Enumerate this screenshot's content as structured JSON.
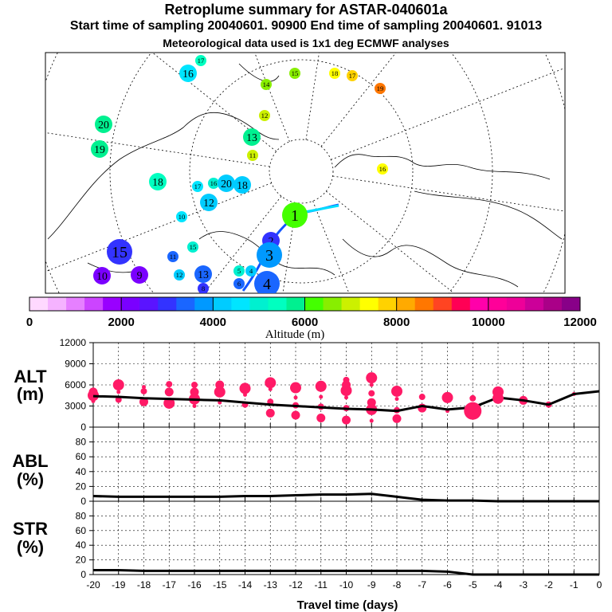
{
  "header": {
    "title": "Retroplume summary for ASTAR-040601a",
    "sampling": "Start time of sampling 20040601. 90900     End time of sampling 20040601. 91013",
    "meteo": "Meteorological data used is 1x1 deg ECMWF analyses"
  },
  "colors": {
    "pink": "#ff1a66",
    "track": "#000000",
    "scale": [
      "#ffd9ff",
      "#f5b3ff",
      "#e680ff",
      "#cc44ff",
      "#9900ff",
      "#7a00ff",
      "#5a14ff",
      "#3333ff",
      "#1a66ff",
      "#0099ff",
      "#00ccff",
      "#00e5ff",
      "#00f0d0",
      "#00ffc0",
      "#00f090",
      "#44ff00",
      "#88ee00",
      "#ccf000",
      "#ffff00",
      "#ffd200",
      "#ffaa00",
      "#ff7700",
      "#ff4422",
      "#ff0055",
      "#ff00aa",
      "#ff0099",
      "#ee0099",
      "#cc0099",
      "#aa0088",
      "#880088"
    ]
  },
  "map": {
    "labels": [
      {
        "t": "1",
        "alt": 6200,
        "s": "L"
      },
      {
        "t": "2",
        "alt": 3000,
        "s": "M"
      },
      {
        "t": "3",
        "alt": 3800,
        "s": "L"
      },
      {
        "t": "4",
        "alt": 3500,
        "s": "L"
      },
      {
        "t": "4",
        "alt": 4300,
        "s": "S"
      },
      {
        "t": "5",
        "alt": 4800,
        "s": "S"
      },
      {
        "t": "6",
        "alt": 3400,
        "s": "S"
      },
      {
        "t": "8",
        "alt": 3000,
        "s": "S"
      },
      {
        "t": "9",
        "alt": 2300,
        "s": "M"
      },
      {
        "t": "10",
        "alt": 2200,
        "s": "M"
      },
      {
        "t": "11",
        "alt": 3200,
        "s": "S"
      },
      {
        "t": "12",
        "alt": 4000,
        "s": "M"
      },
      {
        "t": "13",
        "alt": 3400,
        "s": "M"
      },
      {
        "t": "13",
        "alt": 5900,
        "s": "M"
      },
      {
        "t": "15",
        "alt": 3000,
        "s": "L"
      },
      {
        "t": "16",
        "alt": 4700,
        "s": "M"
      },
      {
        "t": "17",
        "alt": 5200,
        "s": "S"
      },
      {
        "t": "18",
        "alt": 5400,
        "s": "M"
      },
      {
        "t": "19",
        "alt": 5600,
        "s": "M"
      },
      {
        "t": "20",
        "alt": 5700,
        "s": "M"
      },
      {
        "t": "11",
        "alt": 7000,
        "s": "S"
      },
      {
        "t": "12",
        "alt": 6900,
        "s": "S"
      },
      {
        "t": "14",
        "alt": 6400,
        "s": "S"
      },
      {
        "t": "15",
        "alt": 6600,
        "s": "S"
      },
      {
        "t": "16",
        "alt": 7200,
        "s": "S"
      },
      {
        "t": "17",
        "alt": 7600,
        "s": "S"
      },
      {
        "t": "18",
        "alt": 7300,
        "s": "S"
      },
      {
        "t": "19",
        "alt": 8400,
        "s": "S"
      },
      {
        "t": "16",
        "alt": 4900,
        "s": "S"
      },
      {
        "t": "17",
        "alt": 4700,
        "s": "S"
      },
      {
        "t": "15",
        "alt": 5100,
        "s": "S"
      },
      {
        "t": "20",
        "alt": 4100,
        "s": "M"
      },
      {
        "t": "18",
        "alt": 4300,
        "s": "M"
      },
      {
        "t": "10",
        "alt": 4400,
        "s": "S"
      },
      {
        "t": "12",
        "alt": 4300,
        "s": "S"
      }
    ]
  },
  "colorbar": {
    "ticks": [
      "0",
      "2000",
      "4000",
      "6000",
      "8000",
      "10000",
      "12000"
    ],
    "label": "Altitude (m)"
  },
  "panels": {
    "alt": {
      "label1": "ALT",
      "label2": "(m)",
      "yticks": [
        "0",
        "3000",
        "6000",
        "9000",
        "12000"
      ]
    },
    "abl": {
      "label1": "ABL",
      "label2": "(%)",
      "yticks": [
        "0",
        "20",
        "40",
        "60",
        "80"
      ]
    },
    "str": {
      "label1": "STR",
      "label2": "(%)",
      "yticks": [
        "0",
        "20",
        "40",
        "60",
        "80"
      ]
    }
  },
  "xaxis": {
    "ticks": [
      "-20",
      "-19",
      "-18",
      "-17",
      "-16",
      "-15",
      "-14",
      "-13",
      "-12",
      "-11",
      "-10",
      "-9",
      "-8",
      "-7",
      "-6",
      "-5",
      "-4",
      "-3",
      "-2",
      "-1",
      "0"
    ],
    "label": "Travel time (days)"
  },
  "chart_data": [
    {
      "type": "line",
      "title": "ALT (m)",
      "xlabel": "Travel time (days)",
      "ylabel": "ALT (m)",
      "xlim": [
        -20,
        0
      ],
      "ylim": [
        0,
        12000
      ],
      "series": [
        {
          "name": "mean altitude",
          "x": [
            -20,
            -19,
            -18,
            -17,
            -16,
            -15,
            -14,
            -13,
            -12,
            -11,
            -10,
            -9,
            -8,
            -7,
            -6,
            -5,
            -4,
            -3,
            -2,
            -1,
            0
          ],
          "values": [
            4400,
            4300,
            4100,
            4000,
            3900,
            3800,
            3500,
            3200,
            3000,
            2800,
            2600,
            2500,
            2300,
            3000,
            2500,
            2800,
            4200,
            3800,
            3200,
            4700,
            5100
          ]
        },
        {
          "name": "cluster altitudes",
          "points": [
            [
              -20,
              3700
            ],
            [
              -20,
              4500
            ],
            [
              -20,
              5000
            ],
            [
              -19,
              3900
            ],
            [
              -19,
              5000
            ],
            [
              -19,
              6000
            ],
            [
              -18,
              3600
            ],
            [
              -18,
              5100
            ],
            [
              -18,
              5700
            ],
            [
              -17,
              3400
            ],
            [
              -17,
              5000
            ],
            [
              -17,
              6100
            ],
            [
              -16,
              3000
            ],
            [
              -16,
              4000
            ],
            [
              -16,
              5000
            ],
            [
              -16,
              6000
            ],
            [
              -15,
              3500
            ],
            [
              -15,
              5000
            ],
            [
              -15,
              6000
            ],
            [
              -14,
              3200
            ],
            [
              -14,
              4600
            ],
            [
              -14,
              5500
            ],
            [
              -13,
              2000
            ],
            [
              -13,
              3600
            ],
            [
              -13,
              5400
            ],
            [
              -13,
              6300
            ],
            [
              -12,
              1700
            ],
            [
              -12,
              3100
            ],
            [
              -12,
              4200
            ],
            [
              -12,
              5600
            ],
            [
              -11,
              1300
            ],
            [
              -11,
              2900
            ],
            [
              -11,
              4300
            ],
            [
              -11,
              5800
            ],
            [
              -10,
              1000
            ],
            [
              -10,
              2700
            ],
            [
              -10,
              4200
            ],
            [
              -10,
              5200
            ],
            [
              -10,
              6000
            ],
            [
              -10,
              6700
            ],
            [
              -9,
              900
            ],
            [
              -9,
              2500
            ],
            [
              -9,
              3500
            ],
            [
              -9,
              4800
            ],
            [
              -9,
              6000
            ],
            [
              -9,
              7000
            ],
            [
              -8,
              1200
            ],
            [
              -8,
              2400
            ],
            [
              -8,
              4000
            ],
            [
              -8,
              5100
            ],
            [
              -7,
              2700
            ],
            [
              -7,
              4300
            ],
            [
              -6,
              2300
            ],
            [
              -6,
              4200
            ],
            [
              -5,
              2300
            ],
            [
              -5,
              4100
            ],
            [
              -4,
              4100
            ],
            [
              -4,
              5000
            ],
            [
              -3,
              3800
            ],
            [
              -2,
              3200
            ],
            [
              -1,
              4700
            ]
          ]
        }
      ]
    },
    {
      "type": "line",
      "title": "ABL (%)",
      "xlabel": "Travel time (days)",
      "ylabel": "ABL (%)",
      "xlim": [
        -20,
        0
      ],
      "ylim": [
        0,
        100
      ],
      "series": [
        {
          "name": "ABL",
          "x": [
            -20,
            -19,
            -18,
            -17,
            -16,
            -15,
            -14,
            -13,
            -12,
            -11,
            -10,
            -9,
            -8,
            -7,
            -6,
            -5,
            -4,
            -3,
            -2,
            -1,
            0
          ],
          "values": [
            7,
            6,
            6,
            6,
            6,
            6,
            7,
            7,
            8,
            9,
            9,
            10,
            6,
            2,
            1,
            1,
            0,
            0,
            0,
            0,
            0
          ]
        }
      ]
    },
    {
      "type": "line",
      "title": "STR (%)",
      "xlabel": "Travel time (days)",
      "ylabel": "STR (%)",
      "xlim": [
        -20,
        0
      ],
      "ylim": [
        0,
        100
      ],
      "series": [
        {
          "name": "STR",
          "x": [
            -20,
            -19,
            -18,
            -17,
            -16,
            -15,
            -14,
            -13,
            -12,
            -11,
            -10,
            -9,
            -8,
            -7,
            -6,
            -5,
            -4,
            -3,
            -2,
            -1,
            0
          ],
          "values": [
            6,
            6,
            5,
            5,
            5,
            5,
            5,
            5,
            5,
            5,
            5,
            5,
            5,
            5,
            4,
            0,
            0,
            0,
            0,
            0,
            0
          ]
        }
      ]
    }
  ]
}
